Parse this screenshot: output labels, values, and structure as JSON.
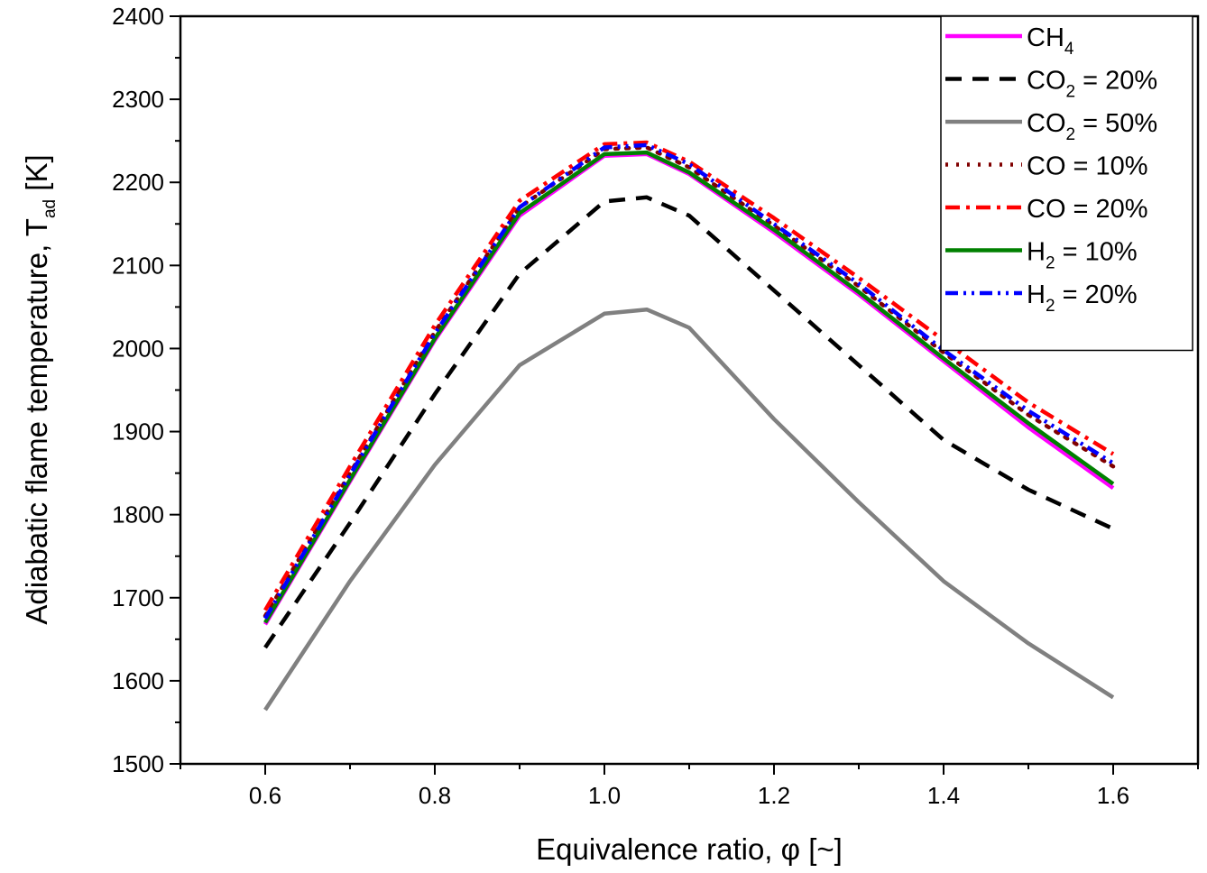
{
  "chart_data": {
    "type": "line",
    "title": "",
    "xlabel": "Equivalence ratio, φ [~]",
    "ylabel": "Adiabatic flame temperature, T",
    "ylabel_sub": "ad",
    "ylabel_unit": " [K]",
    "xlim": [
      0.5,
      1.7
    ],
    "ylim": [
      1500,
      2400
    ],
    "xticks": [
      0.6,
      0.8,
      1.0,
      1.2,
      1.4,
      1.6
    ],
    "xtick_labels": [
      "0.6",
      "0.8",
      "1.0",
      "1.2",
      "1.4",
      "1.6"
    ],
    "yticks": [
      1500,
      1600,
      1700,
      1800,
      1900,
      2000,
      2100,
      2200,
      2300,
      2400
    ],
    "ytick_labels": [
      "1500",
      "1600",
      "1700",
      "1800",
      "1900",
      "2000",
      "2100",
      "2200",
      "2300",
      "2400"
    ],
    "grid": false,
    "legend_position": "top-right",
    "x": [
      0.6,
      0.7,
      0.8,
      0.9,
      1.0,
      1.05,
      1.1,
      1.2,
      1.3,
      1.4,
      1.5,
      1.6
    ],
    "series": [
      {
        "name": "CH",
        "sub": "4",
        "suffix": "",
        "color": "#ff00ff",
        "dash": "solid",
        "values": [
          1668,
          1840,
          2010,
          2160,
          2232,
          2234,
          2210,
          2140,
          2065,
          1985,
          1905,
          1832
        ]
      },
      {
        "name": "CO",
        "sub": "2",
        "suffix": " = 20%",
        "color": "#000000",
        "dash": "dash",
        "values": [
          1640,
          1790,
          1945,
          2090,
          2177,
          2182,
          2160,
          2070,
          1980,
          1890,
          1830,
          1783
        ]
      },
      {
        "name": "CO",
        "sub": "2",
        "suffix": " = 50%",
        "color": "#808080",
        "dash": "solid",
        "values": [
          1565,
          1720,
          1860,
          1980,
          2042,
          2047,
          2025,
          1915,
          1815,
          1720,
          1645,
          1580
        ]
      },
      {
        "name": "CO = 10%",
        "sub": "",
        "suffix": "",
        "color": "#800000",
        "dash": "dot",
        "values": [
          1678,
          1850,
          2020,
          2170,
          2240,
          2242,
          2218,
          2148,
          2075,
          1995,
          1920,
          1858
        ]
      },
      {
        "name": "CO = 20%",
        "sub": "",
        "suffix": "",
        "color": "#ff0000",
        "dash": "dashdot",
        "values": [
          1685,
          1858,
          2028,
          2178,
          2246,
          2248,
          2225,
          2157,
          2085,
          2010,
          1935,
          1873
        ]
      },
      {
        "name": "H",
        "sub": "2",
        "suffix": " = 10%",
        "color": "#008000",
        "dash": "solid",
        "values": [
          1670,
          1842,
          2012,
          2163,
          2234,
          2236,
          2212,
          2143,
          2068,
          1988,
          1910,
          1837
        ]
      },
      {
        "name": "H",
        "sub": "2",
        "suffix": " = 20%",
        "color": "#0000ff",
        "dash": "dashdotdot",
        "values": [
          1675,
          1848,
          2018,
          2170,
          2242,
          2245,
          2222,
          2150,
          2078,
          1998,
          1925,
          1862
        ]
      }
    ]
  }
}
